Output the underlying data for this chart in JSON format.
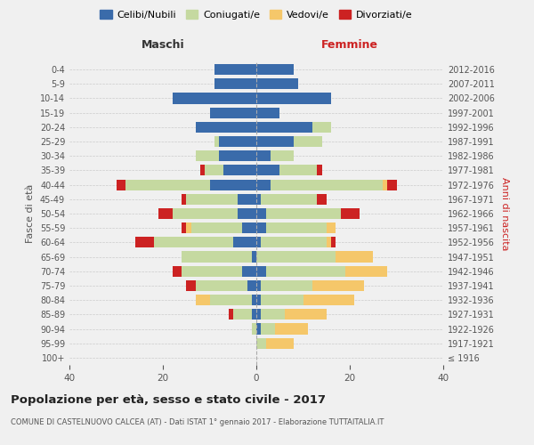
{
  "age_groups": [
    "100+",
    "95-99",
    "90-94",
    "85-89",
    "80-84",
    "75-79",
    "70-74",
    "65-69",
    "60-64",
    "55-59",
    "50-54",
    "45-49",
    "40-44",
    "35-39",
    "30-34",
    "25-29",
    "20-24",
    "15-19",
    "10-14",
    "5-9",
    "0-4"
  ],
  "birth_years": [
    "≤ 1916",
    "1917-1921",
    "1922-1926",
    "1927-1931",
    "1932-1936",
    "1937-1941",
    "1942-1946",
    "1947-1951",
    "1952-1956",
    "1957-1961",
    "1962-1966",
    "1967-1971",
    "1972-1976",
    "1977-1981",
    "1982-1986",
    "1987-1991",
    "1992-1996",
    "1997-2001",
    "2002-2006",
    "2007-2011",
    "2012-2016"
  ],
  "maschi": {
    "celibi": [
      0,
      0,
      0,
      1,
      1,
      2,
      3,
      1,
      5,
      3,
      4,
      4,
      10,
      7,
      8,
      8,
      13,
      10,
      18,
      9,
      9
    ],
    "coniugati": [
      0,
      0,
      1,
      4,
      9,
      11,
      13,
      15,
      17,
      11,
      14,
      11,
      18,
      4,
      5,
      1,
      0,
      0,
      0,
      0,
      0
    ],
    "vedovi": [
      0,
      0,
      0,
      0,
      3,
      0,
      0,
      0,
      0,
      1,
      0,
      0,
      0,
      0,
      0,
      0,
      0,
      0,
      0,
      0,
      0
    ],
    "divorziati": [
      0,
      0,
      0,
      1,
      0,
      2,
      2,
      0,
      4,
      1,
      3,
      1,
      2,
      1,
      0,
      0,
      0,
      0,
      0,
      0,
      0
    ]
  },
  "femmine": {
    "nubili": [
      0,
      0,
      1,
      1,
      1,
      1,
      2,
      0,
      1,
      2,
      2,
      1,
      3,
      5,
      3,
      8,
      12,
      5,
      16,
      9,
      8
    ],
    "coniugate": [
      0,
      2,
      3,
      5,
      9,
      11,
      17,
      17,
      14,
      13,
      16,
      12,
      24,
      8,
      5,
      6,
      4,
      0,
      0,
      0,
      0
    ],
    "vedove": [
      0,
      6,
      7,
      9,
      11,
      11,
      9,
      8,
      1,
      2,
      0,
      0,
      1,
      0,
      0,
      0,
      0,
      0,
      0,
      0,
      0
    ],
    "divorziate": [
      0,
      0,
      0,
      0,
      0,
      0,
      0,
      0,
      1,
      0,
      4,
      2,
      2,
      1,
      0,
      0,
      0,
      0,
      0,
      0,
      0
    ]
  },
  "colors": {
    "celibi": "#3a6baa",
    "coniugati": "#c5d9a0",
    "vedovi": "#f5c76a",
    "divorziati": "#cc2222"
  },
  "xlim": 40,
  "title": "Popolazione per età, sesso e stato civile - 2017",
  "subtitle": "COMUNE DI CASTELNUOVO CALCEA (AT) - Dati ISTAT 1° gennaio 2017 - Elaborazione TUTTAITALIA.IT",
  "ylabel_left": "Fasce di età",
  "ylabel_right": "Anni di nascita",
  "legend_labels": [
    "Celibi/Nubili",
    "Coniugati/e",
    "Vedovi/e",
    "Divorziati/e"
  ],
  "maschi_label": "Maschi",
  "femmine_label": "Femmine",
  "background_color": "#f0f0f0",
  "bar_height": 0.75
}
